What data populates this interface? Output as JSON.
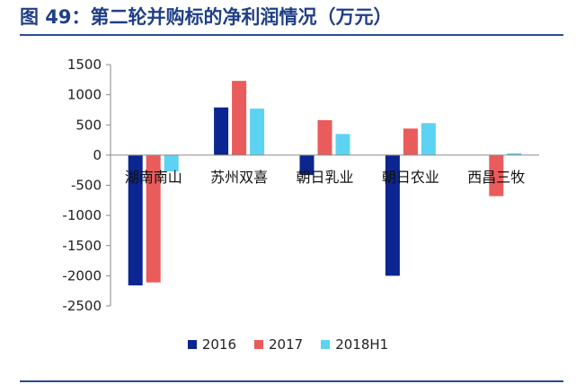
{
  "figure": {
    "title": "图 49：第二轮并购标的净利润情况（万元）"
  },
  "colors": {
    "title": "#1f3f87",
    "rule": "#2a4b95",
    "series": [
      "#0b2690",
      "#ea5b5b",
      "#5cd3f2"
    ]
  },
  "chart_data": {
    "type": "bar",
    "title": "",
    "xlabel": "",
    "ylabel": "",
    "categories": [
      "湖南南山",
      "苏州双喜",
      "朝日乳业",
      "朝日农业",
      "西昌三牧"
    ],
    "series": [
      {
        "name": "2016",
        "values": [
          -2160,
          790,
          -330,
          -2000,
          0
        ]
      },
      {
        "name": "2017",
        "values": [
          -2110,
          1230,
          580,
          440,
          -680
        ]
      },
      {
        "name": "2018H1",
        "values": [
          -270,
          770,
          350,
          530,
          30
        ]
      }
    ],
    "ylim": [
      -2500,
      1500
    ],
    "yticks": [
      1500,
      1000,
      500,
      0,
      -500,
      -1000,
      -1500,
      -2000,
      -2500
    ],
    "grid": false,
    "legend_position": "bottom"
  }
}
